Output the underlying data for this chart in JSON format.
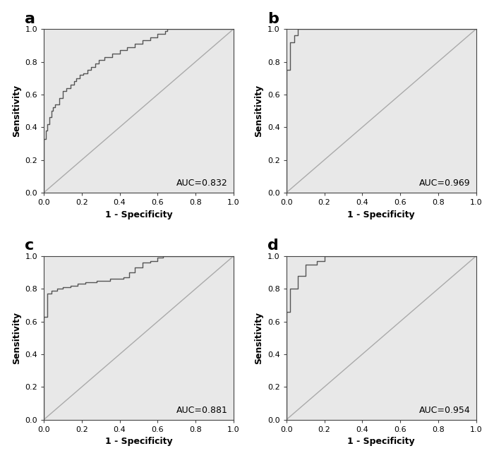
{
  "panels": [
    {
      "label": "a",
      "auc": "AUC=0.832"
    },
    {
      "label": "b",
      "auc": "AUC=0.969"
    },
    {
      "label": "c",
      "auc": "AUC=0.881"
    },
    {
      "label": "d",
      "auc": "AUC=0.954"
    }
  ],
  "roc_a_fpr": [
    0.0,
    0.0,
    0.01,
    0.01,
    0.02,
    0.02,
    0.03,
    0.03,
    0.04,
    0.04,
    0.05,
    0.05,
    0.06,
    0.06,
    0.07,
    0.08,
    0.08,
    0.09,
    0.1,
    0.1,
    0.11,
    0.12,
    0.13,
    0.14,
    0.15,
    0.16,
    0.17,
    0.17,
    0.18,
    0.19,
    0.2,
    0.21,
    0.22,
    0.23,
    0.24,
    0.25,
    0.26,
    0.27,
    0.28,
    0.29,
    0.3,
    0.32,
    0.34,
    0.36,
    0.38,
    0.4,
    0.42,
    0.44,
    0.46,
    0.48,
    0.5,
    0.52,
    0.54,
    0.56,
    0.58,
    0.6,
    0.62,
    0.64,
    0.65,
    1.0
  ],
  "roc_a_tpr": [
    0.0,
    0.33,
    0.33,
    0.38,
    0.38,
    0.42,
    0.42,
    0.46,
    0.46,
    0.5,
    0.5,
    0.52,
    0.52,
    0.54,
    0.54,
    0.54,
    0.58,
    0.58,
    0.58,
    0.62,
    0.62,
    0.64,
    0.64,
    0.66,
    0.66,
    0.68,
    0.68,
    0.7,
    0.7,
    0.72,
    0.72,
    0.73,
    0.73,
    0.75,
    0.75,
    0.77,
    0.77,
    0.79,
    0.79,
    0.81,
    0.81,
    0.83,
    0.83,
    0.85,
    0.85,
    0.87,
    0.87,
    0.89,
    0.89,
    0.91,
    0.91,
    0.93,
    0.93,
    0.95,
    0.95,
    0.97,
    0.97,
    0.99,
    1.0,
    1.0
  ],
  "roc_b_fpr": [
    0.0,
    0.0,
    0.02,
    0.02,
    0.04,
    0.04,
    0.06,
    0.06,
    0.17,
    1.0
  ],
  "roc_b_tpr": [
    0.0,
    0.75,
    0.75,
    0.92,
    0.92,
    0.96,
    0.96,
    1.0,
    1.0,
    1.0
  ],
  "roc_c_fpr": [
    0.0,
    0.0,
    0.02,
    0.02,
    0.04,
    0.04,
    0.07,
    0.07,
    0.1,
    0.1,
    0.14,
    0.14,
    0.18,
    0.18,
    0.22,
    0.22,
    0.28,
    0.28,
    0.35,
    0.35,
    0.42,
    0.42,
    0.45,
    0.45,
    0.48,
    0.48,
    0.52,
    0.52,
    0.56,
    0.56,
    0.6,
    0.6,
    0.63,
    1.0
  ],
  "roc_c_tpr": [
    0.0,
    0.63,
    0.63,
    0.77,
    0.77,
    0.79,
    0.79,
    0.8,
    0.8,
    0.81,
    0.81,
    0.82,
    0.82,
    0.83,
    0.83,
    0.84,
    0.84,
    0.85,
    0.85,
    0.86,
    0.86,
    0.87,
    0.87,
    0.9,
    0.9,
    0.93,
    0.93,
    0.96,
    0.96,
    0.97,
    0.97,
    0.99,
    1.0,
    1.0
  ],
  "roc_d_fpr": [
    0.0,
    0.0,
    0.02,
    0.02,
    0.06,
    0.06,
    0.1,
    0.1,
    0.16,
    0.16,
    0.2,
    0.2,
    0.5,
    1.0
  ],
  "roc_d_tpr": [
    0.0,
    0.66,
    0.66,
    0.8,
    0.8,
    0.88,
    0.88,
    0.95,
    0.95,
    0.97,
    0.97,
    1.0,
    1.0,
    1.0
  ],
  "bg_color": "#E8E8E8",
  "curve_color": "#555555",
  "diag_color": "#AAAAAA",
  "axis_label_fontsize": 9,
  "tick_fontsize": 8,
  "panel_label_fontsize": 16,
  "auc_fontsize": 9,
  "xlabel": "1 - Specificity",
  "ylabel": "Sensitivity"
}
